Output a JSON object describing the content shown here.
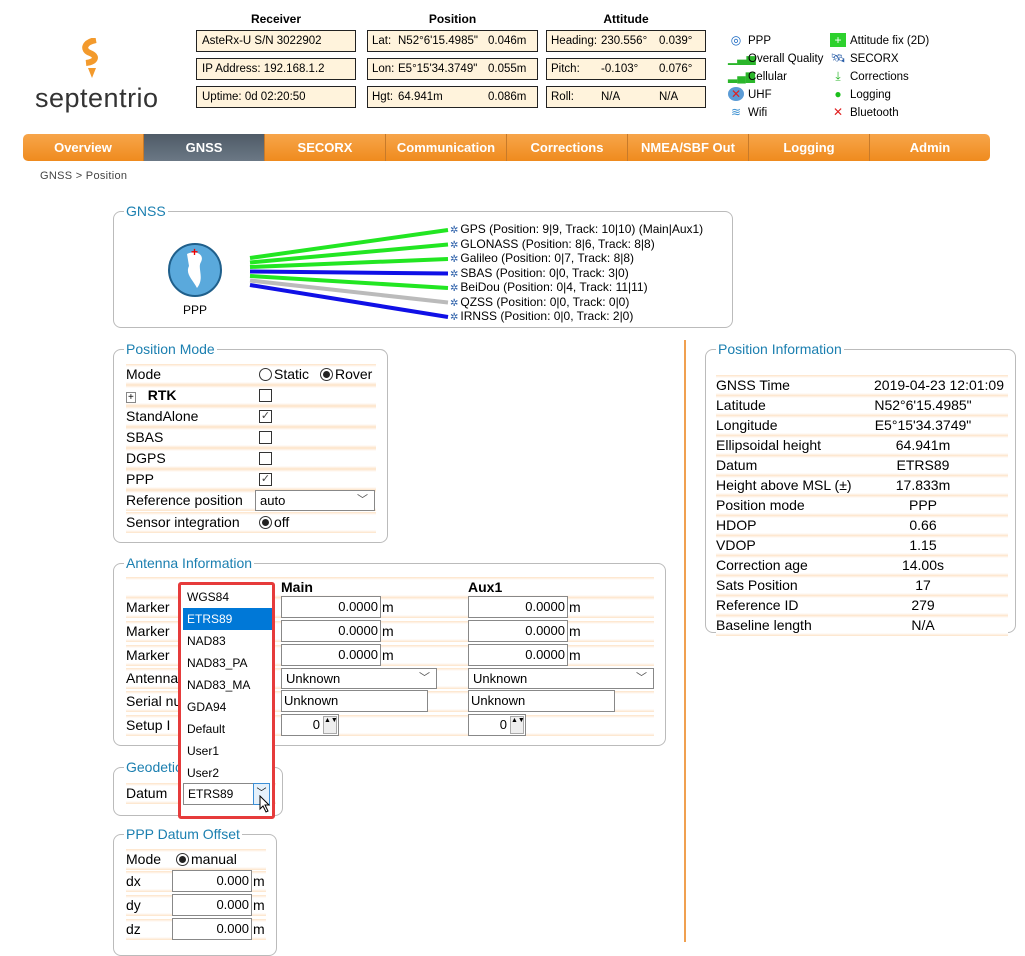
{
  "brand": {
    "name": "septentrio",
    "accent": "#f39a2c"
  },
  "header": {
    "receiver": {
      "title": "Receiver",
      "rows": [
        "AsteRx-U S/N 3022902",
        "IP Address: 192.168.1.2",
        "Uptime: 0d 02:20:50"
      ]
    },
    "position": {
      "title": "Position",
      "rows": [
        {
          "label": "Lat:",
          "value": "N52°6'15.4985\"",
          "acc": "0.046m"
        },
        {
          "label": "Lon:",
          "value": "E5°15'34.3749\"",
          "acc": "0.055m"
        },
        {
          "label": "Hgt:",
          "value": "64.941m",
          "acc": "0.086m"
        }
      ]
    },
    "attitude": {
      "title": "Attitude",
      "rows": [
        {
          "label": "Heading:",
          "value": "230.556°",
          "acc": "0.039°"
        },
        {
          "label": "Pitch:",
          "value": "-0.103°",
          "acc": "0.076°"
        },
        {
          "label": "Roll:",
          "value": "N/A",
          "acc": "N/A"
        }
      ]
    },
    "status": [
      {
        "icon": "target-icon",
        "label": "PPP"
      },
      {
        "icon": "signal-bars-icon",
        "label": "Overall Quality"
      },
      {
        "icon": "cellular-icon",
        "label": "Cellular"
      },
      {
        "icon": "uhf-disabled-icon",
        "label": "UHF"
      },
      {
        "icon": "wifi-icon",
        "label": "Wifi"
      },
      {
        "icon": "attitude-fix-icon",
        "label": "Attitude fix (2D)"
      },
      {
        "icon": "satellite-icon",
        "label": "SECORX"
      },
      {
        "icon": "download-arrow-icon",
        "label": "Corrections"
      },
      {
        "icon": "green-led-icon",
        "label": "Logging"
      },
      {
        "icon": "bluetooth-disabled-icon",
        "label": "Bluetooth"
      }
    ]
  },
  "nav": {
    "tabs": [
      "Overview",
      "GNSS",
      "SECORX",
      "Communication",
      "Corrections",
      "NMEA/SBF Out",
      "Logging",
      "Admin"
    ],
    "active": "GNSS"
  },
  "breadcrumb": "GNSS > Position",
  "gnss": {
    "title": "GNSS",
    "receiver_label": "PPP",
    "constellations": [
      {
        "text": "GPS (Position: 9|9, Track: 10|10) (Main|Aux1)",
        "color": "#22e622"
      },
      {
        "text": "GLONASS (Position: 8|6, Track: 8|8)",
        "color": "#22e622"
      },
      {
        "text": "Galileo (Position: 0|7, Track: 8|8)",
        "color": "#22e622"
      },
      {
        "text": "SBAS (Position: 0|0, Track: 3|0)",
        "color": "#1010e6"
      },
      {
        "text": "BeiDou (Position: 0|4, Track: 11|11)",
        "color": "#22e622"
      },
      {
        "text": "QZSS (Position: 0|0, Track: 0|0)",
        "color": "#bbbbbb"
      },
      {
        "text": "IRNSS (Position: 0|0, Track: 2|0)",
        "color": "#1010e6"
      }
    ]
  },
  "position_mode": {
    "title": "Position Mode",
    "mode_label": "Mode",
    "static": "Static",
    "rover": "Rover",
    "rows": [
      {
        "label": "RTK",
        "checked": false
      },
      {
        "label": "StandAlone",
        "checked": true
      },
      {
        "label": "SBAS",
        "checked": false
      },
      {
        "label": "DGPS",
        "checked": false
      },
      {
        "label": "PPP",
        "checked": true
      }
    ],
    "ref_label": "Reference position",
    "ref_value": "auto",
    "sensor_label": "Sensor integration",
    "sensor_value": "off"
  },
  "antenna": {
    "title": "Antenna Information",
    "col_main": "Main",
    "col_aux": "Aux1",
    "labels": [
      "Marker",
      "Marker",
      "Marker",
      "Antenna",
      "Serial nu",
      "Setup I"
    ],
    "main": {
      "d1": "0.0000",
      "d2": "0.0000",
      "d3": "0.0000",
      "type": "Unknown",
      "serial": "Unknown",
      "setup": "0"
    },
    "aux": {
      "d1": "0.0000",
      "d2": "0.0000",
      "d3": "0.0000",
      "type": "Unknown",
      "serial": "Unknown",
      "setup": "0"
    },
    "unit": "m"
  },
  "geodetic": {
    "title": "Geodetic",
    "datum_label": "Datum",
    "datum_value": "ETRS89",
    "options": [
      "WGS84",
      "ETRS89",
      "NAD83",
      "NAD83_PA",
      "NAD83_MA",
      "GDA94",
      "Default",
      "User1",
      "User2"
    ],
    "highlighted": "ETRS89"
  },
  "ppp_offset": {
    "title": "PPP Datum Offset",
    "mode_label": "Mode",
    "mode_value": "manual",
    "rows": [
      {
        "label": "dx",
        "value": "0.000"
      },
      {
        "label": "dy",
        "value": "0.000"
      },
      {
        "label": "dz",
        "value": "0.000"
      }
    ],
    "unit": "m"
  },
  "position_info": {
    "title": "Position Information",
    "rows": [
      {
        "label": "GNSS Time",
        "value": "2019-04-23 12:01:09"
      },
      {
        "label": "Latitude",
        "value": "N52°6'15.4985\""
      },
      {
        "label": "Longitude",
        "value": "E5°15'34.3749\""
      },
      {
        "label": "Ellipsoidal height",
        "value": "64.941m"
      },
      {
        "label": "Datum",
        "value": "ETRS89"
      },
      {
        "label": "Height above MSL (±)",
        "value": "17.833m"
      },
      {
        "label": "Position mode",
        "value": "PPP"
      },
      {
        "label": "HDOP",
        "value": "0.66"
      },
      {
        "label": "VDOP",
        "value": "1.15"
      },
      {
        "label": "Correction age",
        "value": "14.00s"
      },
      {
        "label": "Sats Position",
        "value": "17"
      },
      {
        "label": "Reference ID",
        "value": "279"
      },
      {
        "label": "Baseline length",
        "value": "N/A"
      }
    ]
  }
}
